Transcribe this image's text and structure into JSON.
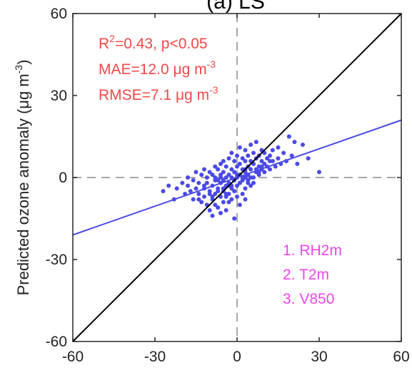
{
  "chart_data": {
    "type": "scatter",
    "title": "(a) LS",
    "xlabel": "",
    "ylabel": "Predicted ozone anomaly (μg m",
    "ylabel_unit_sup": "-3",
    "ylabel_close": ")",
    "xlim": [
      -60,
      60
    ],
    "ylim": [
      -60,
      60
    ],
    "x_ticks": [
      -60,
      -30,
      0,
      30,
      60
    ],
    "y_ticks": [
      -60,
      -30,
      0,
      30,
      60
    ],
    "x_tick_labels": [
      "-60",
      "-30",
      "0",
      "30",
      "60"
    ],
    "y_tick_labels": [
      "-60",
      "-30",
      "0",
      "30",
      "60"
    ],
    "grid": false,
    "box": true,
    "reference_lines": {
      "one_to_one": true,
      "zero_x": true,
      "zero_y": true
    },
    "regression": {
      "slope": 0.35,
      "intercept": 0
    },
    "stats": {
      "r2_prefix": "R",
      "r2_sup": "2",
      "r2_rest": "=0.43, p<0.05",
      "mae_text": "MAE=12.0 μg m",
      "mae_sup": "-3",
      "rmse_text": "RMSE=7.1 μg m",
      "rmse_sup": "-3"
    },
    "predictors": [
      "1. RH2m",
      "2. T2m",
      "3. V850"
    ],
    "colors": {
      "points": "#4a4ae6",
      "regression": "#4a4ae6",
      "one_to_one": "#000000",
      "zero_lines": "#a6a6a6",
      "stats_text": "#f04848",
      "predictors_text": "#ee44ee"
    },
    "series": [
      {
        "x": [
          -27,
          -25,
          -23,
          -22,
          -20,
          -19,
          -18,
          -18,
          -17,
          -16,
          -16,
          -15,
          -15,
          -14,
          -14,
          -13,
          -13,
          -12,
          -12,
          -12,
          -11,
          -11,
          -11,
          -10,
          -10,
          -10,
          -9,
          -9,
          -9,
          -9,
          -8,
          -8,
          -8,
          -8,
          -7,
          -7,
          -7,
          -7,
          -6,
          -6,
          -6,
          -6,
          -6,
          -5,
          -5,
          -5,
          -5,
          -5,
          -4,
          -4,
          -4,
          -4,
          -4,
          -3,
          -3,
          -3,
          -3,
          -3,
          -2,
          -2,
          -2,
          -2,
          -2,
          -1,
          -1,
          -1,
          -1,
          -1,
          0,
          0,
          0,
          0,
          0,
          1,
          1,
          1,
          1,
          1,
          2,
          2,
          2,
          2,
          2,
          3,
          3,
          3,
          3,
          3,
          4,
          4,
          4,
          4,
          5,
          5,
          5,
          5,
          6,
          6,
          6,
          6,
          7,
          7,
          7,
          8,
          8,
          8,
          9,
          9,
          9,
          10,
          10,
          10,
          11,
          11,
          12,
          12,
          13,
          13,
          14,
          15,
          15,
          16,
          17,
          18,
          19,
          20,
          21,
          22,
          24,
          26,
          30,
          -8,
          -6,
          -3,
          0,
          3,
          6,
          9,
          -10,
          -5,
          2,
          5,
          8,
          -14,
          -9,
          -4,
          1,
          4,
          7,
          12,
          -12,
          -7,
          -2,
          3
        ],
        "y": [
          -5,
          -3,
          -8,
          -4,
          -2,
          -6,
          -3,
          0,
          -5,
          -1,
          -8,
          -4,
          2,
          -6,
          -2,
          -9,
          1,
          -4,
          -7,
          3,
          -2,
          -10,
          0,
          -5,
          -12,
          2,
          -3,
          -8,
          1,
          -14,
          -6,
          0,
          -10,
          4,
          -4,
          -1,
          -11,
          3,
          -7,
          -2,
          0,
          -13,
          5,
          -5,
          -1,
          -9,
          2,
          6,
          -3,
          -7,
          0,
          4,
          -12,
          -6,
          -2,
          1,
          -9,
          7,
          -4,
          0,
          3,
          -8,
          9,
          -5,
          -1,
          2,
          -15,
          6,
          -3,
          0,
          4,
          -7,
          8,
          -2,
          1,
          5,
          -10,
          11,
          -1,
          3,
          -6,
          7,
          0,
          -4,
          2,
          6,
          -8,
          10,
          -2,
          4,
          1,
          8,
          -3,
          3,
          6,
          12,
          0,
          5,
          -2,
          9,
          2,
          7,
          13,
          1,
          4,
          8,
          3,
          6,
          10,
          2,
          5,
          9,
          4,
          7,
          3,
          8,
          6,
          10,
          4,
          7,
          11,
          5,
          9,
          6,
          15,
          8,
          13,
          5,
          12,
          7,
          2,
          -1,
          1,
          -3,
          1,
          3,
          5,
          4,
          -6,
          -4,
          -1,
          0,
          2,
          -8,
          -7,
          -6,
          -2,
          -1,
          3,
          6,
          -3,
          -5,
          -3,
          0
        ]
      }
    ]
  }
}
